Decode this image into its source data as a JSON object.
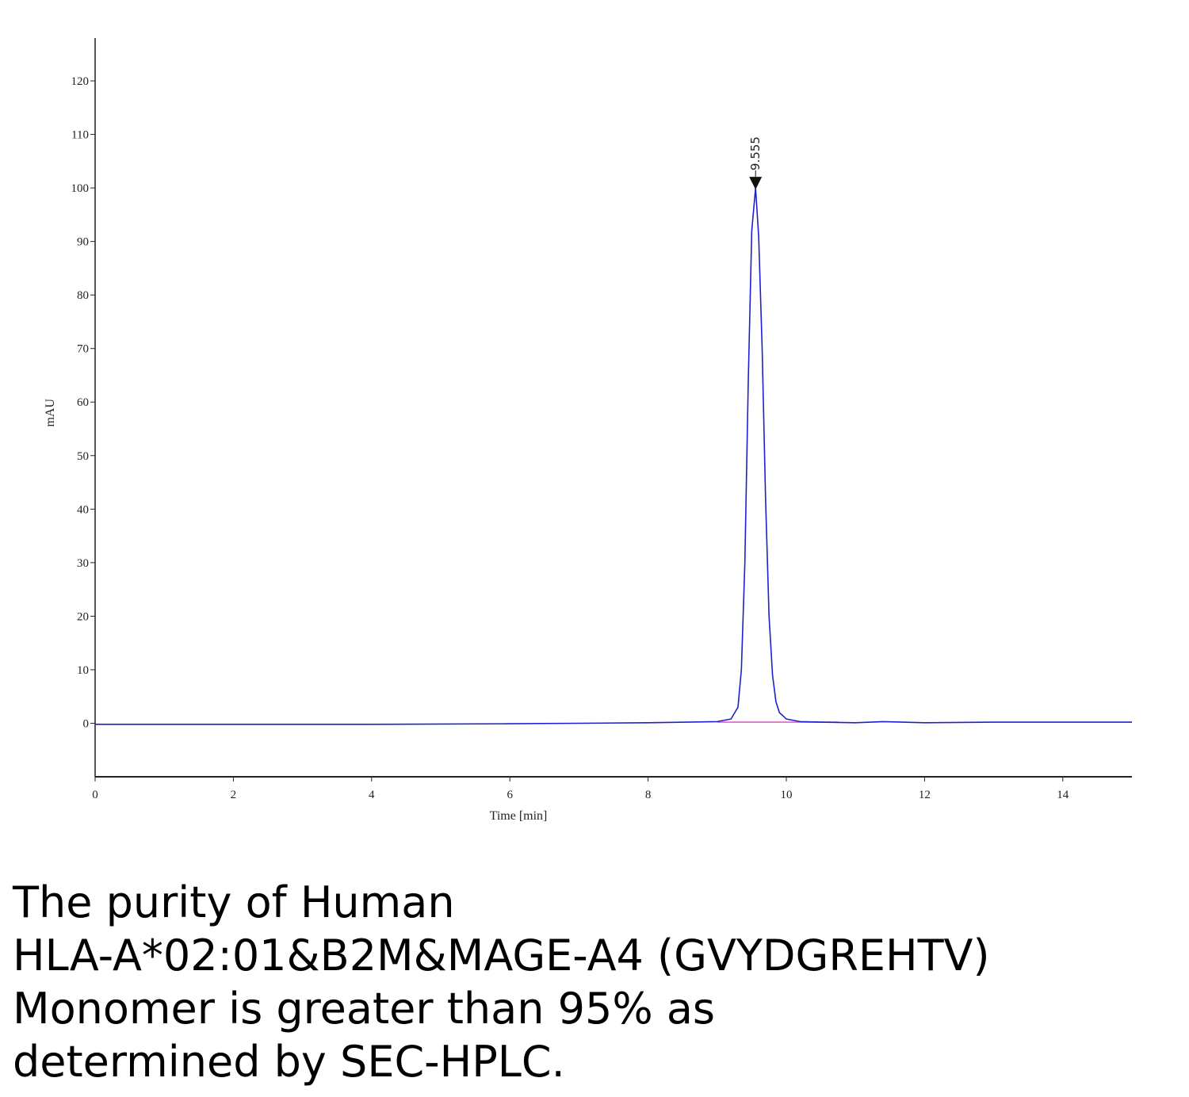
{
  "chart_data": {
    "type": "line",
    "title": "",
    "xlabel": "Time [min]",
    "ylabel": "mAU",
    "xlim": [
      0,
      15
    ],
    "ylim": [
      -10,
      128
    ],
    "x_ticks": [
      0,
      2,
      4,
      6,
      8,
      10,
      12,
      14
    ],
    "y_ticks": [
      0,
      10,
      20,
      30,
      40,
      50,
      60,
      70,
      80,
      90,
      100,
      110,
      120
    ],
    "grid": false,
    "legend": "none",
    "series": [
      {
        "color": "#1f1fd0",
        "x": [
          0,
          2,
          4,
          6,
          7,
          8,
          9,
          9.2,
          9.3,
          9.35,
          9.4,
          9.45,
          9.5,
          9.555,
          9.6,
          9.65,
          9.7,
          9.75,
          9.8,
          9.85,
          9.9,
          10.0,
          10.2,
          10.5,
          11.0,
          11.4,
          12,
          13,
          14,
          15
        ],
        "y": [
          -0.2,
          -0.2,
          -0.2,
          -0.1,
          0,
          0.1,
          0.3,
          0.8,
          3,
          10,
          30,
          64,
          92,
          100,
          91,
          70,
          42,
          20,
          9,
          4,
          2,
          0.8,
          0.3,
          0.2,
          0.1,
          0.3,
          0.1,
          0.2,
          0.2,
          0.2
        ]
      },
      {
        "color": "#e060c0",
        "x": [
          9.0,
          10.75
        ],
        "y": [
          0.2,
          0.2
        ]
      }
    ],
    "annotations": [
      {
        "x": 9.555,
        "y": 100,
        "text": "9.555"
      }
    ]
  },
  "caption": {
    "lines": [
      "The purity of Human",
      "HLA-A*02:01&B2M&MAGE-A4 (GVYDGREHTV)",
      "Monomer is greater than 95% as",
      "determined by SEC-HPLC."
    ]
  }
}
